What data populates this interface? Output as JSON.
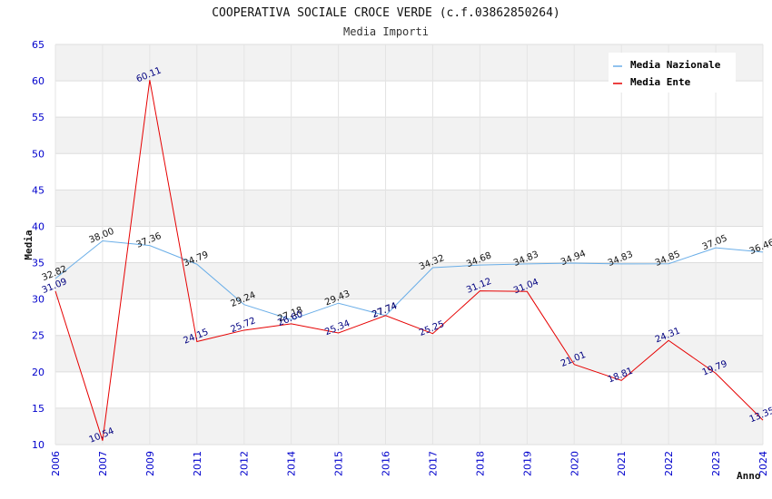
{
  "chart_data": {
    "type": "line",
    "title": "COOPERATIVA SOCIALE CROCE VERDE (c.f.03862850264)",
    "subtitle": "Media Importi",
    "xlabel": "Anno",
    "ylabel": "Media",
    "ylim": [
      10,
      65
    ],
    "yticks": [
      10,
      15,
      20,
      25,
      30,
      35,
      40,
      45,
      50,
      55,
      60,
      65
    ],
    "categories": [
      "2006",
      "2007",
      "2009",
      "2011",
      "2012",
      "2014",
      "2015",
      "2016",
      "2017",
      "2018",
      "2019",
      "2020",
      "2021",
      "2022",
      "2023",
      "2024"
    ],
    "legend_position": "top-right",
    "series": [
      {
        "name": "Media Nazionale",
        "color": "#6aaee8",
        "label_color": "#111111",
        "values": [
          32.82,
          38.0,
          37.36,
          34.79,
          29.24,
          27.18,
          29.43,
          27.74,
          34.32,
          34.68,
          34.83,
          34.94,
          34.83,
          34.85,
          37.05,
          36.46
        ],
        "labels": [
          "32.82",
          "38.00",
          "37.36",
          "34.79",
          "29.24",
          "27.18",
          "29.43",
          "27.74",
          "34.32",
          "34.68",
          "34.83",
          "34.94",
          "34.83",
          "34.85",
          "37.05",
          "36.46"
        ]
      },
      {
        "name": "Media Ente",
        "color": "#e60000",
        "label_color": "#000080",
        "values": [
          31.09,
          10.54,
          60.11,
          24.15,
          25.72,
          26.6,
          25.34,
          27.74,
          25.25,
          31.12,
          31.04,
          21.01,
          18.81,
          24.31,
          19.79,
          13.35
        ],
        "labels": [
          "31.09",
          "10.54",
          "60.11",
          "24.15",
          "25.72",
          "26.60",
          "25.34",
          "27.74",
          "25.25",
          "31.12",
          "31.04",
          "21.01",
          "18.81",
          "24.31",
          "19.79",
          "13.35"
        ]
      }
    ]
  }
}
